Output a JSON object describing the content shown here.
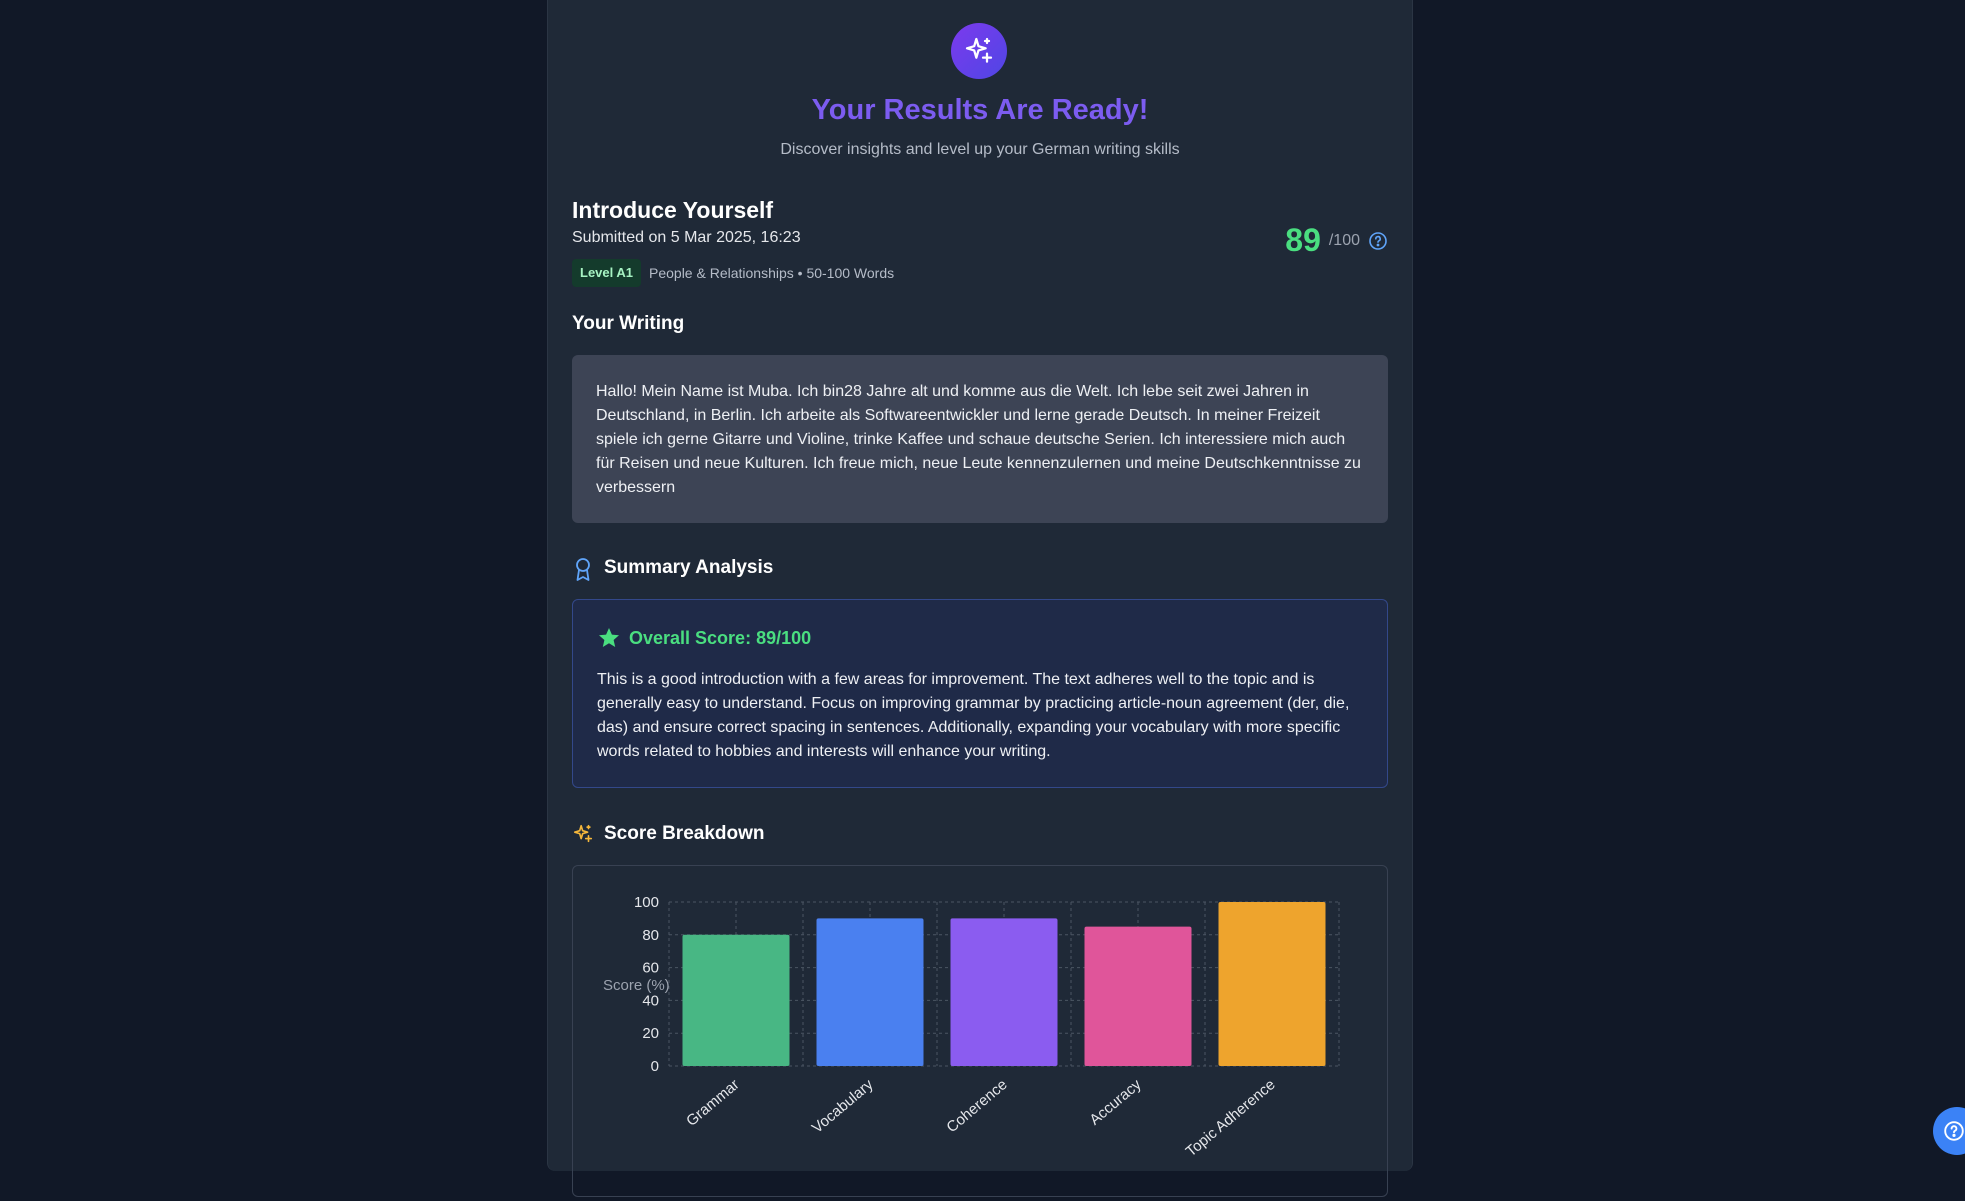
{
  "hero": {
    "title": "Your Results Are Ready!",
    "subtitle": "Discover insights and level up your German writing skills",
    "icon": "sparkles-icon"
  },
  "task": {
    "title": "Introduce Yourself",
    "submitted": "Submitted on 5 Mar 2025, 16:23",
    "level": "Level A1",
    "meta": "People & Relationships • 50-100 Words",
    "score": "89",
    "score_max": "/100"
  },
  "writing": {
    "heading": "Your Writing",
    "text": "Hallo! Mein Name ist Muba. Ich bin28 Jahre alt und komme aus die Welt. Ich lebe seit zwei Jahren in Deutschland, in Berlin. Ich arbeite als Softwareentwickler und lerne gerade Deutsch. In meiner Freizeit spiele ich gerne Gitarre und Violine, trinke Kaffee und schaue deutsche Serien. Ich interessiere mich auch für Reisen und neue Kulturen. Ich freue mich, neue Leute kennenzulernen und meine Deutschkenntnisse zu verbessern"
  },
  "summary": {
    "heading": "Summary Analysis",
    "overall_label": "Overall Score: 89/100",
    "text": "This is a good introduction with a few areas for improvement. The text adheres well to the topic and is generally easy to understand. Focus on improving grammar by practicing article-noun agreement (der, die, das) and ensure correct spacing in sentences. Additionally, expanding your vocabulary with more specific words related to hobbies and interests will enhance your writing."
  },
  "breakdown": {
    "heading": "Score Breakdown"
  },
  "colors": {
    "accent": "#7c5cf0",
    "score_green": "#4ade80",
    "help_blue": "#3b82f6"
  },
  "chart_data": {
    "type": "bar",
    "categories": [
      "Grammar",
      "Vocabulary",
      "Coherence",
      "Accuracy",
      "Topic Adherence"
    ],
    "values": [
      80,
      90,
      90,
      85,
      100
    ],
    "colors": [
      "#48b784",
      "#4a80f0",
      "#8b5cf0",
      "#e0559a",
      "#eea42d"
    ],
    "ylabel": "Score (%)",
    "ylim": [
      0,
      100
    ],
    "yticks": [
      0,
      20,
      40,
      60,
      80,
      100
    ],
    "grid": true
  }
}
